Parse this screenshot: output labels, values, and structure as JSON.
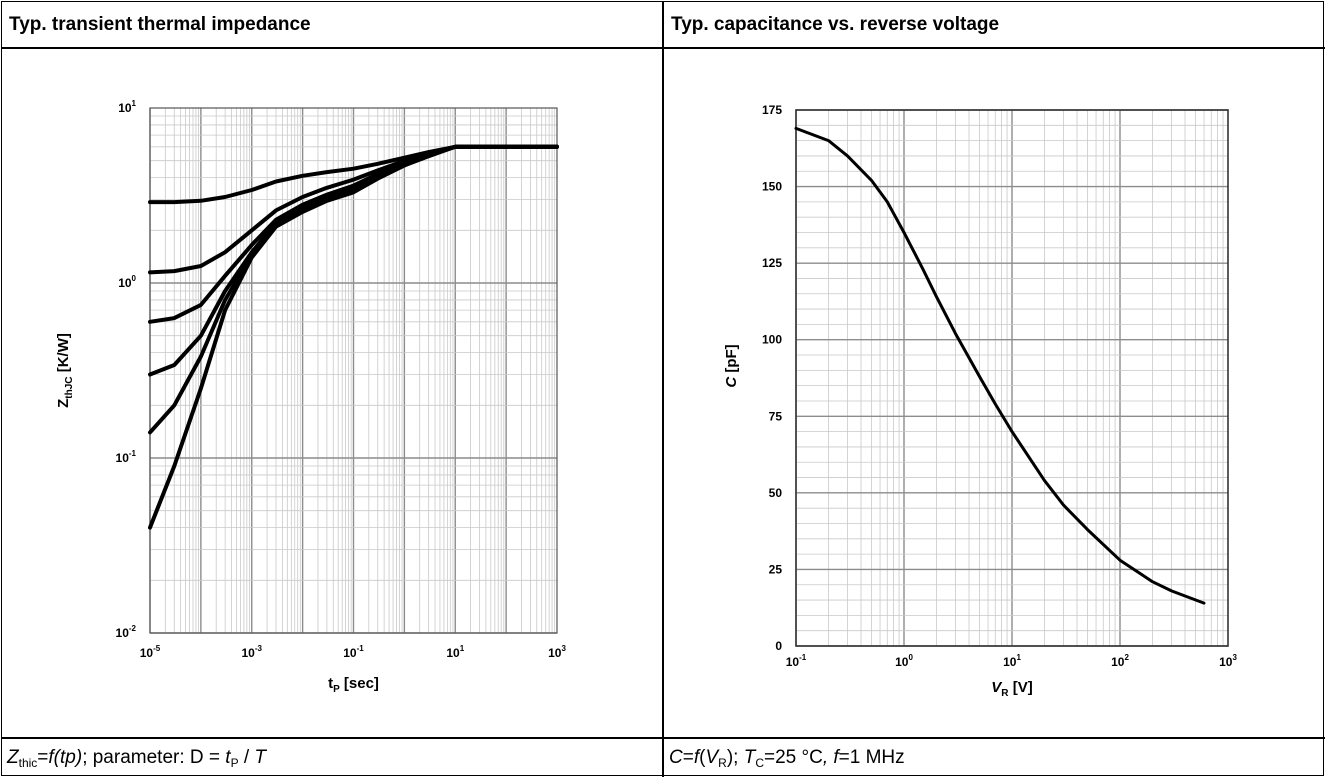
{
  "left_panel": {
    "title": "Typ. transient thermal impedance",
    "caption": {
      "z": "Z",
      "z_sub": "thic",
      "eq": "=",
      "func": "f(tp)",
      "param": "; parameter: D = ",
      "t": "t",
      "t_sub": "P",
      "slash": " / ",
      "T": "T"
    }
  },
  "right_panel": {
    "title": "Typ. capacitance vs. reverse voltage",
    "caption": {
      "c": "C",
      "eq": "=",
      "f": "f",
      "open": "(",
      "v": "V",
      "v_sub": "R",
      "close": "); ",
      "tc": "T",
      "tc_sub": "C",
      "tc_val": "=25 °C",
      "comma": ", ",
      "fr": "f",
      "fr_val": "=1 MHz"
    }
  },
  "chart_data": [
    {
      "type": "line",
      "title": "Typ. transient thermal impedance",
      "xlabel": {
        "main": "t",
        "sub": "P",
        "unit": " [sec]"
      },
      "ylabel": {
        "main": "Z",
        "sub": "thJC",
        "unit": " [K/W]"
      },
      "xscale": "log",
      "yscale": "log",
      "xlim": [
        1e-05,
        1000
      ],
      "ylim": [
        0.01,
        10
      ],
      "x_ticks": [
        {
          "b": "10",
          "e": "-5"
        },
        {
          "b": "10",
          "e": "-3"
        },
        {
          "b": "10",
          "e": "-1"
        },
        {
          "b": "10",
          "e": "1"
        },
        {
          "b": "10",
          "e": "3"
        }
      ],
      "y_ticks": [
        {
          "b": "10",
          "e": "-2"
        },
        {
          "b": "10",
          "e": "-1"
        },
        {
          "b": "10",
          "e": "0"
        },
        {
          "b": "10",
          "e": "1"
        }
      ],
      "grid": true,
      "series": [
        {
          "x": [
            1e-05,
            3e-05,
            0.0001,
            0.0003,
            0.001,
            0.003,
            0.01,
            0.03,
            0.1,
            0.3,
            1,
            3,
            10,
            30,
            100,
            1000
          ],
          "y": [
            2.9,
            2.9,
            2.95,
            3.1,
            3.4,
            3.8,
            4.1,
            4.3,
            4.5,
            4.8,
            5.2,
            5.6,
            6.0,
            6.0,
            6.0,
            6.0
          ]
        },
        {
          "x": [
            1e-05,
            3e-05,
            0.0001,
            0.0003,
            0.001,
            0.003,
            0.01,
            0.03,
            0.1,
            0.3,
            1,
            3,
            10,
            30,
            100,
            1000
          ],
          "y": [
            1.15,
            1.17,
            1.25,
            1.5,
            2.0,
            2.6,
            3.1,
            3.5,
            3.9,
            4.4,
            5.0,
            5.5,
            6.0,
            6.0,
            6.0,
            6.0
          ]
        },
        {
          "x": [
            1e-05,
            3e-05,
            0.0001,
            0.0003,
            0.001,
            0.003,
            0.01,
            0.03,
            0.1,
            0.3,
            1,
            3,
            10,
            30,
            100,
            1000
          ],
          "y": [
            0.6,
            0.63,
            0.75,
            1.1,
            1.65,
            2.3,
            2.8,
            3.2,
            3.6,
            4.2,
            4.9,
            5.5,
            6.0,
            6.0,
            6.0,
            6.0
          ]
        },
        {
          "x": [
            1e-05,
            3e-05,
            0.0001,
            0.0003,
            0.001,
            0.003,
            0.01,
            0.03,
            0.1,
            0.3,
            1,
            3,
            10,
            30,
            100,
            1000
          ],
          "y": [
            0.3,
            0.34,
            0.5,
            0.9,
            1.5,
            2.2,
            2.7,
            3.1,
            3.5,
            4.1,
            4.8,
            5.4,
            6.0,
            6.0,
            6.0,
            6.0
          ]
        },
        {
          "x": [
            1e-05,
            3e-05,
            0.0001,
            0.0003,
            0.001,
            0.003,
            0.01,
            0.03,
            0.1,
            0.3,
            1,
            3,
            10,
            30,
            100,
            1000
          ],
          "y": [
            0.14,
            0.2,
            0.38,
            0.8,
            1.45,
            2.15,
            2.6,
            3.0,
            3.4,
            4.0,
            4.7,
            5.4,
            6.0,
            6.0,
            6.0,
            6.0
          ]
        },
        {
          "x": [
            1e-05,
            3e-05,
            0.0001,
            0.0003,
            0.001,
            0.003,
            0.01,
            0.03,
            0.1,
            0.3,
            1,
            3,
            10,
            30,
            100,
            1000
          ],
          "y": [
            0.04,
            0.09,
            0.25,
            0.7,
            1.4,
            2.1,
            2.55,
            2.95,
            3.3,
            3.95,
            4.7,
            5.3,
            6.0,
            6.0,
            6.0,
            6.0
          ]
        }
      ]
    },
    {
      "type": "line",
      "title": "Typ. capacitance vs. reverse voltage",
      "xlabel": {
        "main": "V",
        "sub": "R",
        "unit": " [V]"
      },
      "ylabel": {
        "main": "C",
        "unit": " [pF]"
      },
      "xscale": "log",
      "yscale": "linear",
      "xlim": [
        0.1,
        1000
      ],
      "ylim": [
        0,
        175
      ],
      "x_ticks": [
        {
          "b": "10",
          "e": "-1"
        },
        {
          "b": "10",
          "e": "0"
        },
        {
          "b": "10",
          "e": "1"
        },
        {
          "b": "10",
          "e": "2"
        },
        {
          "b": "10",
          "e": "3"
        }
      ],
      "y_ticks": [
        "0",
        "25",
        "50",
        "75",
        "100",
        "125",
        "150",
        "175"
      ],
      "grid": true,
      "series": [
        {
          "x": [
            0.1,
            0.2,
            0.3,
            0.5,
            0.7,
            1,
            1.5,
            2,
            3,
            5,
            7,
            10,
            20,
            30,
            50,
            100,
            200,
            300,
            600
          ],
          "y": [
            169,
            165,
            160,
            152,
            145,
            135,
            123,
            114,
            102,
            88,
            79,
            70,
            54,
            46,
            38,
            28,
            21,
            18,
            14
          ]
        }
      ]
    }
  ]
}
